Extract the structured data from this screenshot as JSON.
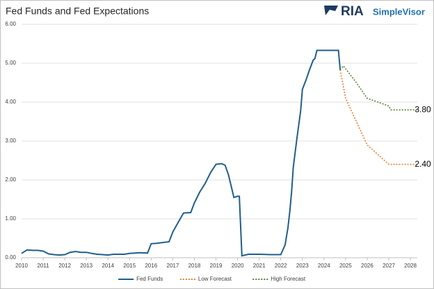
{
  "brand": {
    "mark": "RIA",
    "name": "SimpleVisor"
  },
  "chart_data": {
    "type": "line",
    "title": "Fed Funds and Fed Expectations",
    "xlim": [
      2010,
      2028.32
    ],
    "xticks": [
      2010,
      2011,
      2012,
      2013,
      2014,
      2015,
      2016,
      2017,
      2018,
      2019,
      2020,
      2021,
      2022,
      2023,
      2024,
      2025,
      2026,
      2027,
      2028
    ],
    "ylim": [
      0,
      6
    ],
    "yticks": [
      {
        "value": 0,
        "label": "0.00"
      },
      {
        "value": 1,
        "label": "1.00"
      },
      {
        "value": 2,
        "label": "2.00"
      },
      {
        "value": 3,
        "label": "3.00"
      },
      {
        "value": 4,
        "label": "4.00"
      },
      {
        "value": 5,
        "label": "5.00"
      },
      {
        "value": 6,
        "label": "6.00"
      }
    ],
    "grid": true,
    "legend": "bottom",
    "series": [
      {
        "name": "Fed Funds",
        "color": "#1f5f8b",
        "dash": "solid",
        "x": [
          2010,
          2010.25,
          2010.5,
          2010.75,
          2011,
          2011.25,
          2011.5,
          2011.75,
          2012,
          2012.25,
          2012.5,
          2012.75,
          2013,
          2013.25,
          2013.5,
          2013.75,
          2014,
          2014.25,
          2014.5,
          2014.75,
          2015,
          2015.25,
          2015.5,
          2015.83,
          2016,
          2016.25,
          2016.5,
          2016.83,
          2017,
          2017.25,
          2017.5,
          2017.83,
          2018,
          2018.25,
          2018.5,
          2018.75,
          2019,
          2019.25,
          2019.42,
          2019.58,
          2019.83,
          2020,
          2020.08,
          2020.2,
          2020.5,
          2021,
          2021.5,
          2021.75,
          2022,
          2022.2,
          2022.33,
          2022.42,
          2022.5,
          2022.58,
          2022.75,
          2022.92,
          2023,
          2023.17,
          2023.33,
          2023.5,
          2023.58,
          2023.67,
          2024,
          2024.5,
          2024.67,
          2024.75
        ],
        "values": [
          0.11,
          0.2,
          0.19,
          0.19,
          0.17,
          0.1,
          0.08,
          0.07,
          0.08,
          0.14,
          0.16,
          0.14,
          0.14,
          0.11,
          0.09,
          0.08,
          0.07,
          0.09,
          0.09,
          0.09,
          0.11,
          0.12,
          0.13,
          0.12,
          0.36,
          0.37,
          0.39,
          0.41,
          0.66,
          0.91,
          1.15,
          1.16,
          1.41,
          1.69,
          1.91,
          2.19,
          2.4,
          2.42,
          2.38,
          2.13,
          1.55,
          1.58,
          1.58,
          0.05,
          0.09,
          0.09,
          0.08,
          0.08,
          0.08,
          0.33,
          0.77,
          1.21,
          1.68,
          2.33,
          3.08,
          3.78,
          4.33,
          4.57,
          4.83,
          5.08,
          5.12,
          5.33,
          5.33,
          5.33,
          5.33,
          4.83
        ]
      },
      {
        "name": "Low Forecast",
        "color": "#ed7d31",
        "dash": "dotted",
        "x": [
          2024.75,
          2025,
          2025.5,
          2026,
          2026.5,
          2027,
          2028.3
        ],
        "values": [
          4.83,
          4.1,
          3.5,
          2.9,
          2.65,
          2.4,
          2.4
        ],
        "value_labels": [
          null,
          null,
          null,
          null,
          null,
          null,
          "2.40"
        ]
      },
      {
        "name": "High Forecast",
        "color": "#548235",
        "dash": "dotted",
        "x": [
          2024.75,
          2024.9,
          2025.5,
          2026,
          2026.5,
          2027,
          2027.1,
          2028.3
        ],
        "values": [
          4.83,
          4.93,
          4.5,
          4.1,
          4.0,
          3.9,
          3.8,
          3.8
        ],
        "value_labels": [
          null,
          null,
          null,
          null,
          null,
          null,
          null,
          "3.80"
        ]
      }
    ]
  }
}
